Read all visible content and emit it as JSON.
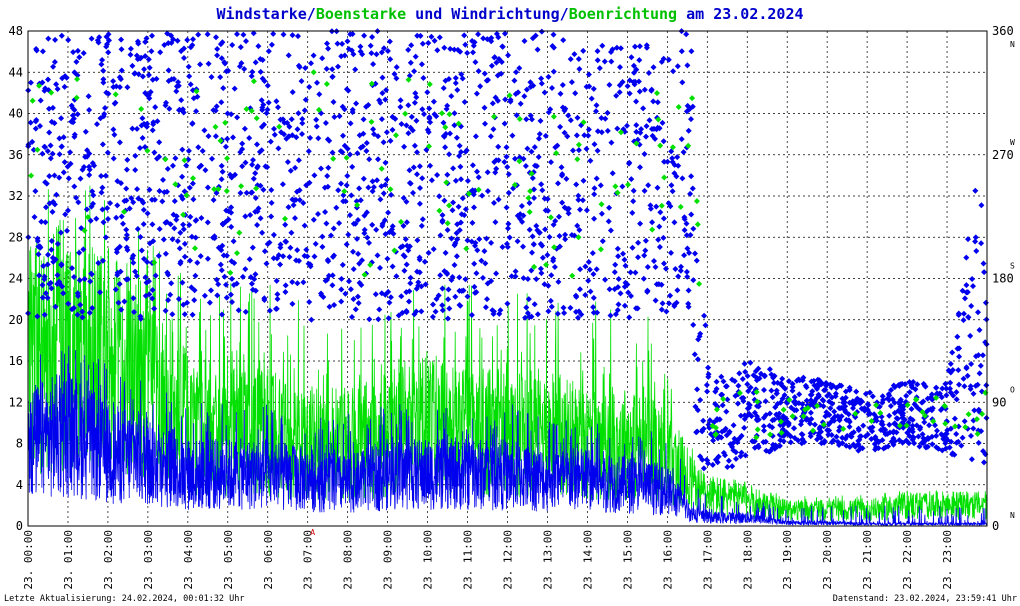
{
  "chart_data": {
    "type": "scatter",
    "title": {
      "parts": [
        {
          "text": "Windstarke",
          "color": "#0000cc"
        },
        {
          "text": "/",
          "color": "#0000cc"
        },
        {
          "text": "Boenstarke",
          "color": "#00c000"
        },
        {
          "text": " und ",
          "color": "#0000cc"
        },
        {
          "text": "Windrichtung",
          "color": "#0000cc"
        },
        {
          "text": "/",
          "color": "#0000cc"
        },
        {
          "text": "Boenrichtung",
          "color": "#00c000"
        },
        {
          "text": " am 23.02.2024",
          "color": "#0000cc"
        }
      ]
    },
    "x_axis": {
      "range_hours": [
        0,
        24
      ],
      "tick_labels": [
        "23. 00:00",
        "23. 01:00",
        "23. 02:00",
        "23. 03:00",
        "23. 04:00",
        "23. 05:00",
        "23. 06:00",
        "23. 07:00",
        "23. 08:00",
        "23. 09:00",
        "23. 10:00",
        "23. 11:00",
        "23. 12:00",
        "23. 13:00",
        "23. 14:00",
        "23. 15:00",
        "23. 16:00",
        "23. 17:00",
        "23. 18:00",
        "23. 19:00",
        "23. 20:00",
        "23. 21:00",
        "23. 22:00",
        "23. 23:00"
      ],
      "marker": {
        "text": "A",
        "hour": 7,
        "color": "#cc0000"
      }
    },
    "y_left": {
      "range": [
        0,
        48
      ],
      "ticks": [
        0,
        4,
        8,
        12,
        16,
        20,
        24,
        28,
        32,
        36,
        40,
        44,
        48
      ]
    },
    "y_right": {
      "range": [
        0,
        360
      ],
      "ticks": [
        0,
        90,
        180,
        270,
        360
      ],
      "direction_letters": [
        {
          "value": 0,
          "text": "N"
        },
        {
          "value": 90,
          "text": "O"
        },
        {
          "value": 180,
          "text": "S"
        },
        {
          "value": 270,
          "text": "W"
        },
        {
          "value": 360,
          "text": "N"
        }
      ]
    },
    "grid": true,
    "series": [
      {
        "key": "wind_speed",
        "style": "line",
        "color": "#0000ee"
      },
      {
        "key": "gust_speed",
        "style": "line",
        "color": "#00e000"
      },
      {
        "key": "wind_direction",
        "style": "diamond",
        "color": "#0000ee"
      },
      {
        "key": "gust_direction",
        "style": "diamond",
        "color": "#00e000"
      }
    ],
    "profile": {
      "wind_speed_mean": [
        [
          0,
          8
        ],
        [
          1,
          9
        ],
        [
          1.5,
          8
        ],
        [
          2,
          7
        ],
        [
          3,
          6.5
        ],
        [
          4,
          5
        ],
        [
          5,
          5
        ],
        [
          6,
          5
        ],
        [
          7,
          4.5
        ],
        [
          8,
          4
        ],
        [
          9,
          5
        ],
        [
          10,
          5
        ],
        [
          11,
          5
        ],
        [
          12,
          5
        ],
        [
          13,
          4.5
        ],
        [
          14,
          4.5
        ],
        [
          15,
          4
        ],
        [
          16,
          3.5
        ],
        [
          16.6,
          1.2
        ],
        [
          17,
          0.8
        ],
        [
          18,
          0.8
        ],
        [
          19,
          0.3
        ],
        [
          20,
          0.3
        ],
        [
          21,
          0.2
        ],
        [
          22,
          0.2
        ],
        [
          23,
          0.2
        ],
        [
          24,
          0.2
        ]
      ],
      "wind_speed_peak": [
        [
          0,
          17
        ],
        [
          1,
          18
        ],
        [
          2,
          16
        ],
        [
          3,
          14
        ],
        [
          4,
          13
        ],
        [
          5,
          12
        ],
        [
          6,
          12
        ],
        [
          7,
          11
        ],
        [
          8,
          11
        ],
        [
          9,
          12
        ],
        [
          10,
          12
        ],
        [
          11,
          11
        ],
        [
          12,
          12
        ],
        [
          13,
          11
        ],
        [
          14,
          10
        ],
        [
          15,
          10
        ],
        [
          16,
          9
        ],
        [
          16.6,
          5
        ],
        [
          17,
          3
        ],
        [
          18,
          3
        ],
        [
          19,
          2
        ],
        [
          20,
          2
        ],
        [
          21,
          2
        ],
        [
          22,
          2
        ],
        [
          23,
          2
        ],
        [
          24,
          2
        ]
      ],
      "gust_speed_mean": [
        [
          0,
          16
        ],
        [
          1,
          18
        ],
        [
          2,
          16
        ],
        [
          3,
          13
        ],
        [
          4,
          10
        ],
        [
          5,
          9
        ],
        [
          6,
          9
        ],
        [
          7,
          8
        ],
        [
          8,
          8
        ],
        [
          9,
          9
        ],
        [
          10,
          10
        ],
        [
          11,
          9
        ],
        [
          12,
          9
        ],
        [
          13,
          9
        ],
        [
          14,
          8
        ],
        [
          15,
          8
        ],
        [
          16,
          7
        ],
        [
          16.6,
          4
        ],
        [
          17,
          3
        ],
        [
          18,
          2.5
        ],
        [
          19,
          1.5
        ],
        [
          20,
          1.5
        ],
        [
          21,
          1.5
        ],
        [
          22,
          2
        ],
        [
          23,
          2
        ],
        [
          24,
          2
        ]
      ],
      "gust_speed_peak": [
        [
          0,
          30
        ],
        [
          1,
          36
        ],
        [
          2,
          34
        ],
        [
          3,
          28
        ],
        [
          4,
          24
        ],
        [
          5,
          24
        ],
        [
          6,
          25
        ],
        [
          7,
          22
        ],
        [
          8,
          20
        ],
        [
          9,
          22
        ],
        [
          10,
          25
        ],
        [
          11,
          25
        ],
        [
          12,
          24
        ],
        [
          13,
          23
        ],
        [
          14,
          22
        ],
        [
          15,
          22
        ],
        [
          16,
          20
        ],
        [
          16.6,
          8
        ],
        [
          17,
          5
        ],
        [
          18,
          4
        ],
        [
          19,
          3
        ],
        [
          20,
          3
        ],
        [
          21,
          3
        ],
        [
          22,
          3.5
        ],
        [
          23,
          3.5
        ],
        [
          24,
          3
        ]
      ],
      "wind_direction_band": [
        [
          0,
          20,
          48
        ],
        [
          16.6,
          20,
          48
        ],
        [
          16.7,
          4,
          48
        ],
        [
          17,
          5,
          16
        ],
        [
          17.5,
          5,
          14
        ],
        [
          18,
          6,
          16
        ],
        [
          19,
          8,
          15
        ],
        [
          20,
          8,
          14
        ],
        [
          21,
          7,
          13
        ],
        [
          22,
          8,
          14
        ],
        [
          23,
          7,
          14
        ],
        [
          23.8,
          5,
          36
        ],
        [
          24,
          5,
          20
        ]
      ],
      "gust_direction_band": [
        [
          0,
          24,
          44
        ],
        [
          16.6,
          24,
          44
        ],
        [
          17,
          6,
          13
        ],
        [
          18,
          8,
          14
        ],
        [
          19,
          9,
          13
        ],
        [
          20,
          9,
          13
        ],
        [
          21,
          9,
          12
        ],
        [
          22,
          9,
          13
        ],
        [
          23,
          9,
          13
        ],
        [
          24,
          8,
          13
        ]
      ]
    }
  },
  "footer": {
    "left": "Letzte Aktualisierung: 24.02.2024, 00:01:32 Uhr",
    "right": "Datenstand: 23.02.2024, 23:59:41 Uhr"
  }
}
